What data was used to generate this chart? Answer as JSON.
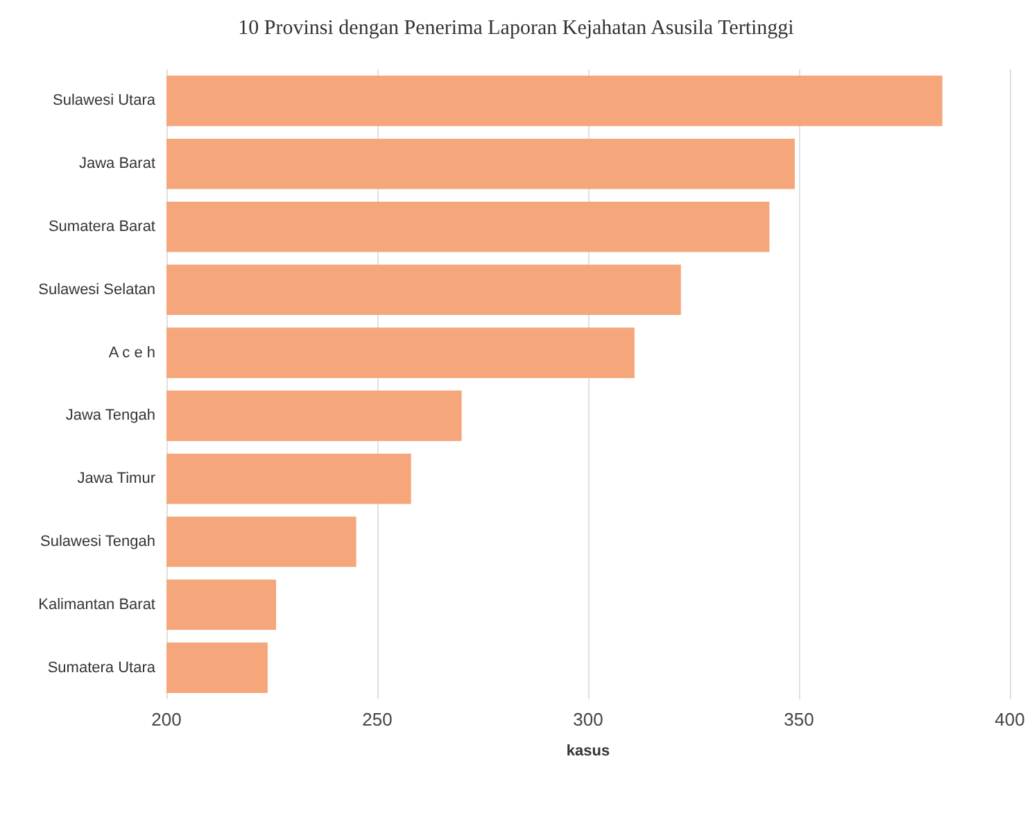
{
  "chart_data": {
    "type": "bar",
    "orientation": "horizontal",
    "title": "10 Provinsi dengan Penerima Laporan Kejahatan Asusila Tertinggi",
    "xlabel": "kasus",
    "categories": [
      "Sulawesi Utara",
      "Jawa Barat",
      "Sumatera Barat",
      "Sulawesi Selatan",
      "A c e h",
      "Jawa Tengah",
      "Jawa Timur",
      "Sulawesi Tengah",
      "Kalimantan Barat",
      "Sumatera Utara"
    ],
    "values": [
      384,
      349,
      343,
      322,
      311,
      270,
      258,
      245,
      226,
      224
    ],
    "color": "#f5a67a",
    "xlim": [
      200,
      400
    ],
    "xticks": [
      200,
      250,
      300,
      350,
      400
    ],
    "grid": "x"
  }
}
